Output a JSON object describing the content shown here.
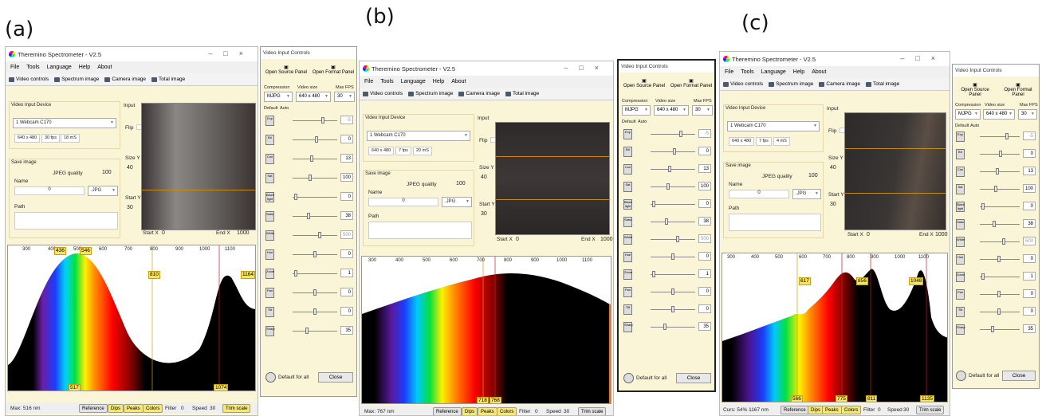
{
  "labels": {
    "a": "(a)",
    "b": "(b)",
    "c": "(c)"
  },
  "window": {
    "title": "Theremino Spectrometer - V2.5",
    "menu": [
      "File",
      "Tools",
      "Language",
      "Help",
      "About"
    ],
    "toolbar": [
      "Video controls",
      "Spectrum image",
      "Camera image",
      "Total image"
    ],
    "video_input_device_label": "Video Input Device",
    "device": "1 Webcam C170",
    "input_label": "Input",
    "flip_label": "Flip",
    "save_image_label": "Save image",
    "jpeg_quality_label": "JPEG quality",
    "jpeg_quality": "100",
    "name_label": "Name",
    "name_value": "0",
    "ext": ".JPG",
    "path_label": "Path",
    "size_y_label": "Size Y",
    "size_y": "40",
    "start_y_label": "Start Y",
    "start_y": "30",
    "start_x_label": "Start X",
    "start_x": "0",
    "end_x_label": "End X",
    "end_x": "1000",
    "buttons": {
      "reference": "Reference",
      "dips": "Dips",
      "peaks": "Peaks",
      "colors": "Colors",
      "filter": "Filter",
      "speed": "Speed",
      "trim": "Trim scale"
    },
    "filter_value": "0",
    "speed_value": "30"
  },
  "panels": [
    {
      "res": "640 x 480",
      "fps": "30 fps",
      "ms": "18 mS",
      "status": "Max: 516 nm",
      "ticks": [
        "300",
        "400",
        "500",
        "600",
        "700",
        "800",
        "900",
        "1000",
        "1100"
      ],
      "peaks_top": [
        "436",
        "546",
        "810",
        "1164"
      ],
      "peaks_bottom": [
        "517",
        "1074"
      ]
    },
    {
      "res": "640 x 480",
      "fps": "7 fps",
      "ms": "20 mS",
      "status": "Max: 767 nm",
      "ticks": [
        "300",
        "400",
        "500",
        "600",
        "700",
        "800",
        "900",
        "1000",
        "1100"
      ],
      "peaks_top": [],
      "peaks_bottom": [
        "718",
        "768"
      ]
    },
    {
      "res": "640 x 480",
      "fps": "7 fps",
      "ms": "4 mS",
      "status": "Curs: 54%  1167 nm",
      "ticks": [
        "300",
        "400",
        "500",
        "600",
        "700",
        "800",
        "900",
        "1000",
        "1100"
      ],
      "peaks_top": [
        "617",
        "856",
        "1048"
      ],
      "peaks_bottom": [
        "566",
        "775",
        "811",
        "1135"
      ]
    }
  ],
  "vic": {
    "title": "Video Input Controls",
    "open_source": "Open Source Panel",
    "open_format": "Open Format Panel",
    "compression_label": "Compression",
    "video_size_label": "Video size",
    "max_fps_label": "Max FPS",
    "compression": "MJPG",
    "video_size": "640 x 480",
    "max_fps": "30",
    "default_label": "Default",
    "auto_label": "Auto",
    "values": [
      "-5",
      "0",
      "13",
      "100",
      "0",
      "38",
      "500",
      "0",
      "1",
      "0",
      "0",
      "35"
    ],
    "icons": [
      "Exp",
      "Bri",
      "Con",
      "Sat",
      "Black light",
      "Satur",
      "White",
      "Hue",
      "Zoom",
      "Pan",
      "Tilt",
      "Sharp"
    ],
    "default_all": "Default for all",
    "close": "Close"
  },
  "colors": {
    "window_bg": "#fbf5d8",
    "accent": "#f5e566",
    "line": "#c78a1e"
  }
}
